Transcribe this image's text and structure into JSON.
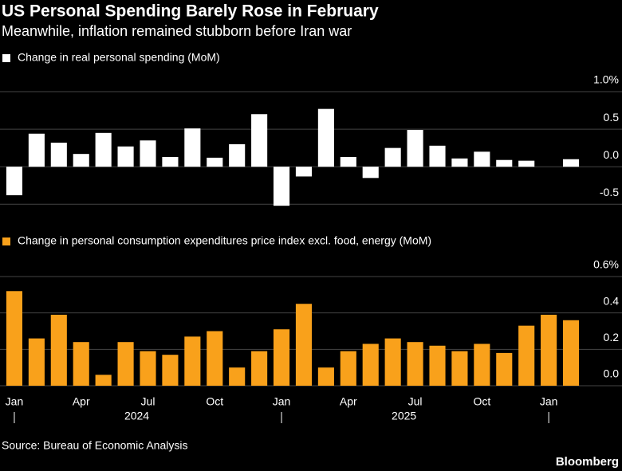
{
  "title": "US Personal Spending Barely Rose in February",
  "subtitle": "Meanwhile, inflation remained stubborn before Iran war",
  "source": "Source: Bureau of Economic Analysis",
  "brand": "Bloomberg",
  "chart_data": [
    {
      "type": "bar",
      "series": [
        {
          "name": "Change in real personal spending (MoM)",
          "color": "#ffffff",
          "values": [
            -0.38,
            0.44,
            0.32,
            0.17,
            0.45,
            0.27,
            0.35,
            0.13,
            0.51,
            0.12,
            0.3,
            0.7,
            -0.52,
            -0.13,
            0.77,
            0.13,
            -0.15,
            0.25,
            0.49,
            0.28,
            0.11,
            0.2,
            0.09,
            0.08,
            0.0,
            0.1
          ]
        }
      ],
      "ylim": [
        -0.55,
        1.0
      ],
      "yticks": [
        -0.5,
        {
          "value": 0,
          "label": "0.0"
        },
        0.5,
        {
          "value": 1,
          "label": "1.0%"
        }
      ],
      "grid": true
    },
    {
      "type": "bar",
      "series": [
        {
          "name": "Change in personal consumption expenditures price index excl. food, energy (MoM)",
          "color": "#f9a11b",
          "values": [
            0.52,
            0.26,
            0.39,
            0.24,
            0.06,
            0.24,
            0.19,
            0.17,
            0.27,
            0.3,
            0.1,
            0.19,
            0.31,
            0.45,
            0.1,
            0.19,
            0.23,
            0.26,
            0.24,
            0.22,
            0.19,
            0.23,
            0.18,
            0.33,
            0.39,
            0.36
          ]
        }
      ],
      "categories": [
        "Jan",
        null,
        null,
        "Apr",
        null,
        null,
        "Jul",
        null,
        null,
        "Oct",
        null,
        null,
        "Jan",
        null,
        null,
        "Apr",
        null,
        null,
        "Jul",
        null,
        null,
        "Oct",
        null,
        null,
        "Jan",
        null
      ],
      "years": [
        "2024",
        "2025"
      ],
      "ylim": [
        0,
        0.6
      ],
      "yticks": [
        {
          "value": 0,
          "label": "0.0"
        },
        0.2,
        0.4,
        {
          "value": 0.6,
          "label": "0.6%"
        }
      ],
      "grid": true
    }
  ]
}
